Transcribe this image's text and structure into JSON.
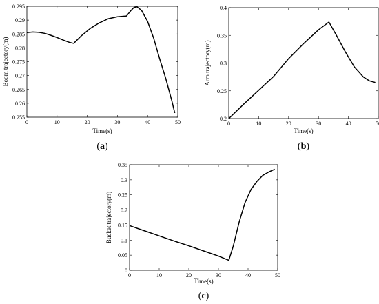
{
  "chart_data": [
    {
      "type": "line",
      "panel_label": "a",
      "xlabel": "Time(s)",
      "ylabel": "Boom trajectory(m)",
      "xlim": [
        0,
        50
      ],
      "ylim": [
        0.255,
        0.295
      ],
      "xticks": [
        0,
        10,
        20,
        30,
        40,
        50
      ],
      "yticks": [
        0.255,
        0.26,
        0.265,
        0.27,
        0.275,
        0.28,
        0.285,
        0.29,
        0.295
      ],
      "grid": false,
      "series": [
        {
          "x": [
            0,
            2,
            4,
            6,
            8,
            10,
            12,
            14,
            15.5,
            18,
            21,
            24,
            27,
            30,
            33,
            34.5,
            35.5,
            36.5,
            38,
            40,
            42,
            44,
            46,
            48,
            49
          ],
          "values": [
            0.2855,
            0.2857,
            0.2856,
            0.2852,
            0.2845,
            0.2837,
            0.2828,
            0.282,
            0.2816,
            0.2843,
            0.287,
            0.289,
            0.2905,
            0.2912,
            0.2915,
            0.2935,
            0.2946,
            0.2948,
            0.2935,
            0.2895,
            0.2835,
            0.276,
            0.269,
            0.261,
            0.2565
          ]
        }
      ]
    },
    {
      "type": "line",
      "panel_label": "b",
      "xlabel": "Time(s)",
      "ylabel": "Arm trajectory(m)",
      "xlim": [
        0,
        50
      ],
      "ylim": [
        0.2,
        0.4
      ],
      "xticks": [
        0,
        10,
        20,
        30,
        40,
        50
      ],
      "yticks": [
        0.2,
        0.25,
        0.3,
        0.35,
        0.4
      ],
      "grid": false,
      "series": [
        {
          "x": [
            0,
            5,
            10,
            15,
            20,
            25,
            30,
            33.5,
            36,
            39,
            42,
            45,
            47,
            49
          ],
          "values": [
            0.2,
            0.226,
            0.251,
            0.276,
            0.308,
            0.335,
            0.36,
            0.374,
            0.35,
            0.32,
            0.293,
            0.275,
            0.268,
            0.265
          ]
        }
      ]
    },
    {
      "type": "line",
      "panel_label": "c",
      "xlabel": "Time(s)",
      "ylabel": "Bucket trajectory(m)",
      "xlim": [
        0,
        50
      ],
      "ylim": [
        0,
        0.35
      ],
      "xticks": [
        0,
        10,
        20,
        30,
        40,
        50
      ],
      "yticks": [
        0,
        0.05,
        0.1,
        0.15,
        0.2,
        0.25,
        0.3,
        0.35
      ],
      "grid": false,
      "series": [
        {
          "x": [
            0,
            5,
            10,
            15,
            20,
            25,
            30,
            33.5,
            35,
            37,
            39,
            41,
            43,
            45,
            47,
            49
          ],
          "values": [
            0.148,
            0.131,
            0.114,
            0.097,
            0.081,
            0.064,
            0.047,
            0.033,
            0.08,
            0.16,
            0.225,
            0.268,
            0.295,
            0.315,
            0.326,
            0.335
          ]
        }
      ]
    }
  ]
}
